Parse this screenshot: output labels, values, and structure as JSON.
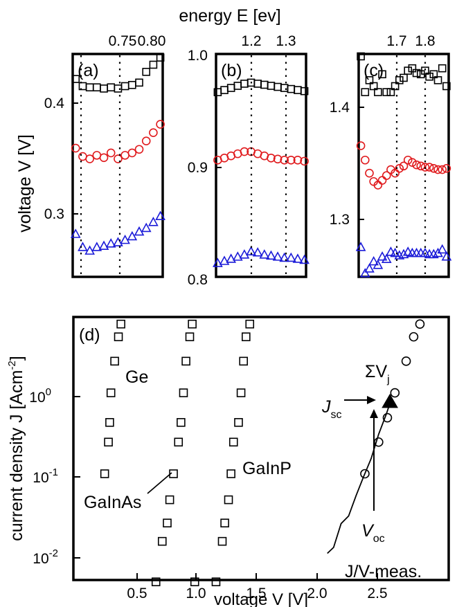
{
  "top_axis": {
    "title": "energy E [ev]"
  },
  "left_axis": {
    "title": "voltage V [V]"
  },
  "panels": [
    {
      "label": "(a)",
      "x_ticks": [
        "0.75",
        "0.80"
      ],
      "y_ticks": [
        "0.4",
        "0.3"
      ],
      "markers": [
        0.68,
        0.75
      ]
    },
    {
      "label": "(b)",
      "x_ticks": [
        "1.2",
        "1.3"
      ],
      "y_ticks": [
        "1.0",
        "0.9",
        "0.8"
      ],
      "markers": [
        1.21,
        1.3
      ]
    },
    {
      "label": "(c)",
      "x_ticks": [
        "1.7",
        "1.8"
      ],
      "y_ticks": [
        "1.4",
        "1.3"
      ],
      "markers": [
        1.7,
        1.8
      ]
    }
  ],
  "bottom_panel": {
    "label": "(d)",
    "x_ticks": [
      "0.5",
      "1.0",
      "1.5",
      "2.0",
      "2.5"
    ],
    "y_ticks": [
      "10",
      "10",
      "10"
    ],
    "y_exps": [
      "0",
      "-1",
      "-2"
    ],
    "xlabel": "voltage V [V]",
    "ylabel": "current density J [Acm",
    "ylabel_sup": "-2",
    "ylabel_end": "]",
    "annotations": {
      "ge": "Ge",
      "gainas": "GaInAs",
      "gainp": "GaInP",
      "sum_v": "ΣV",
      "sum_v_sub": "j",
      "jsc": "J",
      "jsc_sub": "sc",
      "voc": "V",
      "voc_sub": "oc",
      "meas": "J/V-meas."
    }
  },
  "colors": {
    "black": "#000000",
    "red": "#e0191c",
    "blue": "#1a1ad8"
  },
  "chart_data": [
    {
      "type": "scatter",
      "panel": "(a)",
      "x": [
        0.66,
        0.672,
        0.684,
        0.696,
        0.708,
        0.72,
        0.732,
        0.744,
        0.756,
        0.768,
        0.78,
        0.792,
        0.804
      ],
      "xlim": [
        0.655,
        0.808
      ],
      "ylim": [
        0.237,
        0.424
      ],
      "series": [
        {
          "marker": "square",
          "color": "#000000",
          "values": [
            0.403,
            0.397,
            0.396,
            0.396,
            0.395,
            0.396,
            0.395,
            0.397,
            0.398,
            0.4,
            0.409,
            0.415,
            0.421
          ]
        },
        {
          "marker": "circle",
          "color": "#e0191c",
          "values": [
            0.345,
            0.338,
            0.336,
            0.339,
            0.337,
            0.341,
            0.336,
            0.339,
            0.341,
            0.344,
            0.351,
            0.358,
            0.365
          ]
        },
        {
          "marker": "triangle",
          "color": "#1a1ad8",
          "values": [
            0.273,
            0.262,
            0.259,
            0.262,
            0.263,
            0.265,
            0.266,
            0.268,
            0.271,
            0.275,
            0.278,
            0.283,
            0.288
          ]
        }
      ]
    },
    {
      "type": "scatter",
      "panel": "(b)",
      "x": [
        1.1,
        1.12,
        1.14,
        1.16,
        1.18,
        1.2,
        1.22,
        1.24,
        1.26,
        1.28,
        1.3,
        1.32,
        1.34,
        1.36
      ],
      "xlim": [
        1.095,
        1.365
      ],
      "ylim": [
        0.79,
        1.0
      ],
      "series": [
        {
          "marker": "square",
          "color": "#000000",
          "values": [
            0.964,
            0.966,
            0.968,
            0.97,
            0.972,
            0.973,
            0.972,
            0.971,
            0.97,
            0.969,
            0.968,
            0.967,
            0.966,
            0.965
          ]
        },
        {
          "marker": "circle",
          "color": "#e0191c",
          "values": [
            0.9,
            0.902,
            0.904,
            0.906,
            0.908,
            0.908,
            0.906,
            0.904,
            0.902,
            0.901,
            0.9,
            0.9,
            0.9,
            0.899
          ]
        },
        {
          "marker": "triangle",
          "color": "#1a1ad8",
          "values": [
            0.803,
            0.805,
            0.807,
            0.809,
            0.811,
            0.814,
            0.813,
            0.811,
            0.81,
            0.809,
            0.808,
            0.808,
            0.807,
            0.806
          ]
        }
      ]
    },
    {
      "type": "scatter",
      "panel": "(c)",
      "x": [
        1.47,
        1.49,
        1.51,
        1.53,
        1.55,
        1.57,
        1.59,
        1.61,
        1.63,
        1.65,
        1.67,
        1.69,
        1.71,
        1.73,
        1.75,
        1.77,
        1.79,
        1.81,
        1.83,
        1.85,
        1.87
      ],
      "xlim": [
        1.46,
        1.88
      ],
      "ylim": [
        1.245,
        1.432
      ],
      "series": [
        {
          "marker": "square",
          "color": "#000000",
          "values": [
            1.43,
            1.4,
            1.41,
            1.405,
            1.4,
            1.415,
            1.4,
            1.4,
            1.405,
            1.41,
            1.412,
            1.418,
            1.42,
            1.416,
            1.415,
            1.418,
            1.413,
            1.415,
            1.41,
            1.42,
            1.405
          ]
        },
        {
          "marker": "circle",
          "color": "#e0191c",
          "values": [
            1.355,
            1.343,
            1.332,
            1.325,
            1.322,
            1.326,
            1.33,
            1.335,
            1.332,
            1.336,
            1.338,
            1.343,
            1.341,
            1.339,
            1.338,
            1.337,
            1.337,
            1.336,
            1.335,
            1.335,
            1.336
          ]
        },
        {
          "marker": "triangle",
          "color": "#1a1ad8",
          "values": [
            1.27,
            1.248,
            1.252,
            1.258,
            1.255,
            1.262,
            1.26,
            1.266,
            1.265,
            1.263,
            1.264,
            1.266,
            1.265,
            1.265,
            1.265,
            1.265,
            1.264,
            1.264,
            1.265,
            1.268,
            1.262
          ]
        }
      ]
    },
    {
      "type": "scatter",
      "panel": "(d)",
      "xlim": [
        0.0,
        3.0
      ],
      "ylim_log10": [
        -2.5,
        0.75
      ],
      "xlabel": "voltage V [V]",
      "ylabel": "current density J [Acm-2]",
      "series": [
        {
          "name": "Ge",
          "marker": "square",
          "x": [
            0.66,
            0.25,
            0.28,
            0.29,
            0.3,
            0.33,
            0.36,
            0.38
          ],
          "y": [
            0.003,
            0.065,
            0.16,
            0.28,
            0.65,
            1.6,
            3.2,
            4.6
          ]
        },
        {
          "name": "GaInAs",
          "marker": "square",
          "x": [
            1.14,
            0.71,
            0.75,
            0.77,
            0.8,
            0.84,
            0.86,
            0.88,
            0.9,
            0.93,
            0.95,
            0.97
          ],
          "y": [
            0.003,
            0.0095,
            0.016,
            0.031,
            0.065,
            0.16,
            0.28,
            0.65,
            1.6,
            3.2,
            4.6,
            0.003
          ]
        },
        {
          "name": "GaInP",
          "marker": "square",
          "x": [
            1.19,
            1.21,
            1.24,
            1.26,
            1.28,
            1.32,
            1.34,
            1.36,
            1.38,
            1.41
          ],
          "y": [
            0.0095,
            0.016,
            0.031,
            0.065,
            0.16,
            0.28,
            0.65,
            1.6,
            3.2,
            4.6
          ]
        },
        {
          "name": "ΣVj",
          "marker": "circle",
          "x": [
            2.33,
            2.44,
            2.51,
            2.57,
            2.66,
            2.72,
            2.77
          ],
          "y": [
            0.065,
            0.16,
            0.32,
            0.65,
            1.6,
            3.2,
            4.6
          ]
        },
        {
          "name": "Jsc/Voc",
          "marker": "filled-triangle",
          "x": [
            2.53
          ],
          "y": [
            0.5
          ]
        },
        {
          "name": "J/V-meas.",
          "marker": "line",
          "x": [
            2.03,
            2.08,
            2.14,
            2.2,
            2.26,
            2.32,
            2.38,
            2.44,
            2.5,
            2.53
          ],
          "y": [
            0.006,
            0.009,
            0.014,
            0.022,
            0.035,
            0.06,
            0.1,
            0.2,
            0.35,
            0.48
          ]
        }
      ]
    }
  ]
}
